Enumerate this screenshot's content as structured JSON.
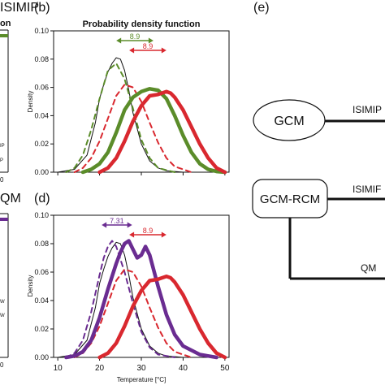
{
  "figure": {
    "left_labels": {
      "isimip": "ISIMIP",
      "qm": "QM",
      "cut_on": "on",
      "cut_ip": "IP",
      "cut_p": "P",
      "cut_w1": "W",
      "cut_w2": "W",
      "ytick_b1": "0",
      "ytick_b2": "0",
      "ytick_b3": "0",
      "xtick_c": "0",
      "xtick_a": "0"
    },
    "panel_labels": {
      "b": "(b)",
      "d": "(d)",
      "e": "(e)"
    },
    "panel_b_title": "Probability density function",
    "diagram": {
      "gcm": "GCM",
      "gcm_rcm": "GCM-RCM",
      "isimip_top": "ISIMIP",
      "isimip_mid": "ISIMIF",
      "qm": "QM"
    }
  },
  "colors": {
    "green": "#5b8c2a",
    "purple": "#6a2c91",
    "red": "#d9282f",
    "black": "#111111"
  },
  "chart_data": [
    {
      "panel": "(b)",
      "type": "line",
      "title": "Probability density function",
      "xlabel": "",
      "ylabel": "Density",
      "xlim": [
        9,
        51
      ],
      "ylim": [
        0,
        0.1
      ],
      "yticks": [
        0.0,
        0.02,
        0.04,
        0.06,
        0.08,
        0.1
      ],
      "ytick_labels": [
        "0.00",
        "0.02",
        "0.04",
        "0.06",
        "0.08",
        "0.10"
      ],
      "xticks": [
        10,
        20,
        30,
        40,
        50
      ],
      "show_xtick_labels": false,
      "annotations": [
        {
          "label": "8.9",
          "color": "green",
          "from": 24.0,
          "to": 32.9
        },
        {
          "label": "8.9",
          "color": "red",
          "from": 27.1,
          "to": 36.0
        }
      ],
      "series": [
        {
          "color": "black",
          "style": "solid",
          "width": 1,
          "x": [
            10,
            14,
            17,
            19,
            20,
            21,
            22,
            23,
            24,
            25,
            26,
            27,
            28,
            30,
            32,
            34,
            36,
            40
          ],
          "y": [
            0,
            0.002,
            0.012,
            0.035,
            0.052,
            0.062,
            0.071,
            0.077,
            0.081,
            0.08,
            0.072,
            0.058,
            0.042,
            0.02,
            0.008,
            0.003,
            0.001,
            0
          ]
        },
        {
          "color": "green",
          "style": "dashed",
          "width": 2,
          "x": [
            12,
            14,
            16,
            18,
            20,
            22,
            24,
            26,
            28,
            30,
            32,
            34,
            38
          ],
          "y": [
            0,
            0.003,
            0.012,
            0.03,
            0.052,
            0.072,
            0.077,
            0.066,
            0.045,
            0.023,
            0.01,
            0.003,
            0
          ]
        },
        {
          "color": "red",
          "style": "dashed",
          "width": 2,
          "x": [
            14,
            16,
            18,
            20,
            22,
            24,
            26,
            28,
            30,
            32,
            34,
            36,
            38,
            42
          ],
          "y": [
            0,
            0.003,
            0.01,
            0.022,
            0.038,
            0.054,
            0.062,
            0.06,
            0.05,
            0.035,
            0.021,
            0.01,
            0.004,
            0
          ]
        },
        {
          "color": "green",
          "style": "solid",
          "width": 4.5,
          "x": [
            16,
            18,
            20,
            22,
            24,
            26,
            28,
            30,
            32,
            34,
            36,
            38,
            40,
            42,
            44,
            46,
            48,
            50
          ],
          "y": [
            0,
            0.002,
            0.006,
            0.014,
            0.028,
            0.044,
            0.053,
            0.057,
            0.059,
            0.058,
            0.052,
            0.04,
            0.026,
            0.014,
            0.006,
            0.002,
            0.0005,
            0
          ]
        },
        {
          "color": "red",
          "style": "solid",
          "width": 4.5,
          "x": [
            20,
            22,
            24,
            26,
            28,
            30,
            32,
            34,
            36,
            37,
            38,
            40,
            42,
            44,
            46,
            48,
            50
          ],
          "y": [
            0,
            0.003,
            0.01,
            0.022,
            0.036,
            0.047,
            0.054,
            0.055,
            0.057,
            0.056,
            0.053,
            0.044,
            0.032,
            0.02,
            0.01,
            0.003,
            0
          ]
        }
      ]
    },
    {
      "panel": "(d)",
      "type": "line",
      "title": "",
      "xlabel": "Temperature [°C]",
      "ylabel": "Density",
      "xlim": [
        9,
        51
      ],
      "ylim": [
        0,
        0.1
      ],
      "yticks": [
        0.0,
        0.02,
        0.04,
        0.06,
        0.08,
        0.1
      ],
      "ytick_labels": [
        "0.00",
        "0.02",
        "0.04",
        "0.06",
        "0.08",
        "0.10"
      ],
      "xticks": [
        10,
        20,
        30,
        40,
        50
      ],
      "xtick_labels": [
        "10",
        "20",
        "30",
        "40",
        "50"
      ],
      "show_xtick_labels": true,
      "annotations": [
        {
          "label": "7.31",
          "color": "purple",
          "from": 20.5,
          "to": 27.8
        },
        {
          "label": "8.9",
          "color": "red",
          "from": 27.1,
          "to": 36.0
        }
      ],
      "series": [
        {
          "color": "black",
          "style": "solid",
          "width": 1,
          "x": [
            10,
            14,
            17,
            19,
            20,
            21,
            22,
            23,
            24,
            25,
            26,
            27,
            28,
            30,
            32,
            34,
            36,
            40
          ],
          "y": [
            0,
            0.002,
            0.012,
            0.035,
            0.052,
            0.062,
            0.071,
            0.077,
            0.081,
            0.08,
            0.072,
            0.058,
            0.042,
            0.02,
            0.008,
            0.003,
            0.001,
            0
          ]
        },
        {
          "color": "purple",
          "style": "dashed",
          "width": 2,
          "x": [
            12,
            14,
            16,
            18,
            20,
            21,
            22,
            23,
            24,
            26,
            28,
            30,
            32,
            34,
            38
          ],
          "y": [
            0,
            0.003,
            0.012,
            0.032,
            0.058,
            0.07,
            0.078,
            0.082,
            0.078,
            0.06,
            0.038,
            0.018,
            0.007,
            0.002,
            0
          ]
        },
        {
          "color": "red",
          "style": "dashed",
          "width": 2,
          "x": [
            14,
            16,
            18,
            20,
            22,
            24,
            26,
            28,
            30,
            32,
            34,
            36,
            38,
            42
          ],
          "y": [
            0,
            0.003,
            0.01,
            0.022,
            0.038,
            0.054,
            0.062,
            0.06,
            0.05,
            0.035,
            0.021,
            0.01,
            0.004,
            0
          ]
        },
        {
          "color": "purple",
          "style": "solid",
          "width": 4.5,
          "x": [
            12,
            14,
            16,
            18,
            20,
            22,
            24,
            25,
            26,
            27,
            28,
            29,
            30,
            31,
            32,
            34,
            36,
            38,
            40,
            44,
            48
          ],
          "y": [
            0,
            0.001,
            0.004,
            0.012,
            0.028,
            0.048,
            0.066,
            0.074,
            0.08,
            0.082,
            0.076,
            0.07,
            0.072,
            0.078,
            0.072,
            0.05,
            0.03,
            0.016,
            0.008,
            0.002,
            0
          ]
        },
        {
          "color": "red",
          "style": "solid",
          "width": 4.5,
          "x": [
            20,
            22,
            24,
            26,
            28,
            30,
            32,
            34,
            36,
            37,
            38,
            40,
            42,
            44,
            46,
            48,
            50
          ],
          "y": [
            0,
            0.003,
            0.01,
            0.022,
            0.036,
            0.047,
            0.054,
            0.055,
            0.057,
            0.056,
            0.053,
            0.044,
            0.032,
            0.02,
            0.01,
            0.003,
            0
          ]
        }
      ]
    }
  ]
}
